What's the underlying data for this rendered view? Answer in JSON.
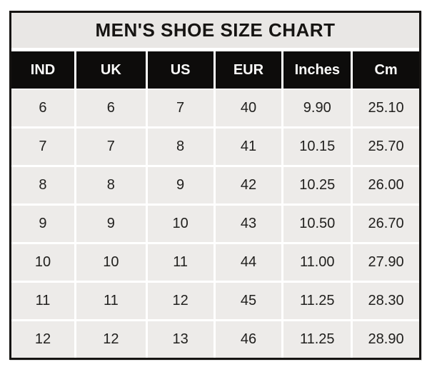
{
  "chart_data": {
    "type": "table",
    "title": "MEN'S SHOE SIZE CHART",
    "columns": [
      "IND",
      "UK",
      "US",
      "EUR",
      "Inches",
      "Cm"
    ],
    "rows": [
      [
        "6",
        "6",
        "7",
        "40",
        "9.90",
        "25.10"
      ],
      [
        "7",
        "7",
        "8",
        "41",
        "10.15",
        "25.70"
      ],
      [
        "8",
        "8",
        "9",
        "42",
        "10.25",
        "26.00"
      ],
      [
        "9",
        "9",
        "10",
        "43",
        "10.50",
        "26.70"
      ],
      [
        "10",
        "10",
        "11",
        "44",
        "11.00",
        "27.90"
      ],
      [
        "11",
        "11",
        "12",
        "45",
        "11.25",
        "28.30"
      ],
      [
        "12",
        "12",
        "13",
        "46",
        "11.25",
        "28.90"
      ]
    ],
    "layout": {
      "grid": "white 3px gridlines",
      "legend": "none"
    }
  },
  "colors": {
    "page_bg": "#ffffff",
    "outer_border": "#161412",
    "title_bg": "#e9e7e5",
    "header_bg": "#0d0c0b",
    "header_text": "#fbfbfa",
    "cell_bg": "#edebe9",
    "cell_text": "#21201e",
    "gridline": "#ffffff"
  }
}
